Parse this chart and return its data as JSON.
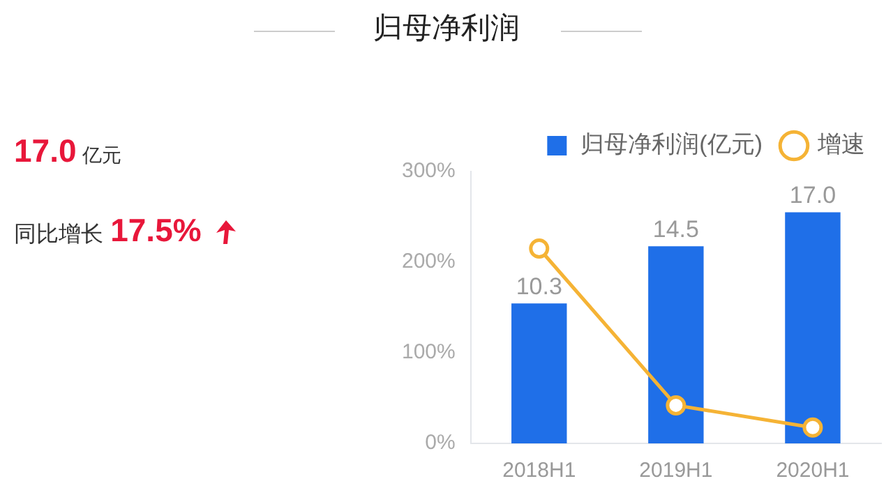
{
  "chart_data": {
    "type": "bar",
    "title": "归母净利润",
    "annotations": [
      "17.0",
      "亿元",
      "同比增长",
      "17.5%"
    ],
    "categories": [
      "2018H1",
      "2019H1",
      "2020H1"
    ],
    "series": [
      {
        "name": "归母净利润(亿元)",
        "axis": "y2",
        "color": "#1f6fe8",
        "values": [
          10.3,
          14.5,
          17.0
        ],
        "value_labels": [
          "10.3",
          "14.5",
          "17.0"
        ]
      },
      {
        "name": "增速",
        "type": "line",
        "color": "#f5b335",
        "values": [
          215,
          42,
          17.5
        ]
      }
    ],
    "ylim": [
      0,
      300
    ],
    "yticks": [
      {
        "value": 0,
        "label": "0%"
      },
      {
        "value": 100,
        "label": "100%"
      },
      {
        "value": 200,
        "label": "200%"
      },
      {
        "value": 300,
        "label": "300%"
      }
    ],
    "y2lim": [
      0,
      20
    ],
    "grid": false,
    "legend": "top right",
    "marker": "circle",
    "line_style": "solid"
  }
}
